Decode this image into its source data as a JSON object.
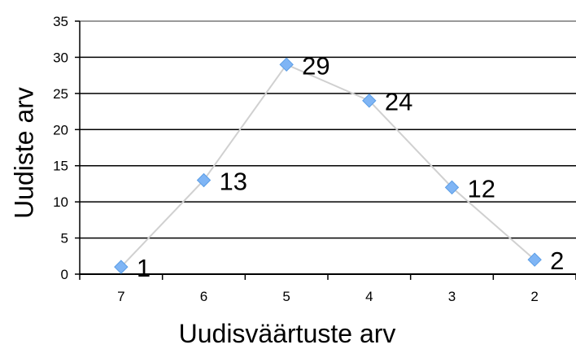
{
  "chart_data": {
    "type": "line",
    "categories": [
      "7",
      "6",
      "5",
      "4",
      "3",
      "2"
    ],
    "series": [
      {
        "values": [
          1,
          13,
          29,
          24,
          12,
          2
        ]
      }
    ],
    "data_labels": [
      "1",
      "13",
      "29",
      "24",
      "12",
      "2"
    ],
    "xlabel": "Uudisväärtuste arv",
    "ylabel": "Uudiste arv",
    "ylim": [
      0,
      35
    ],
    "yticks": [
      "0",
      "5",
      "10",
      "15",
      "20",
      "25",
      "30",
      "35"
    ],
    "grid": true,
    "marker": "diamond",
    "colors": {
      "line": "#d0d0d0",
      "marker": "#7fb5f5",
      "marker_stroke": "#5c9ee6",
      "grid": "#000000",
      "axis": "#000000"
    }
  }
}
